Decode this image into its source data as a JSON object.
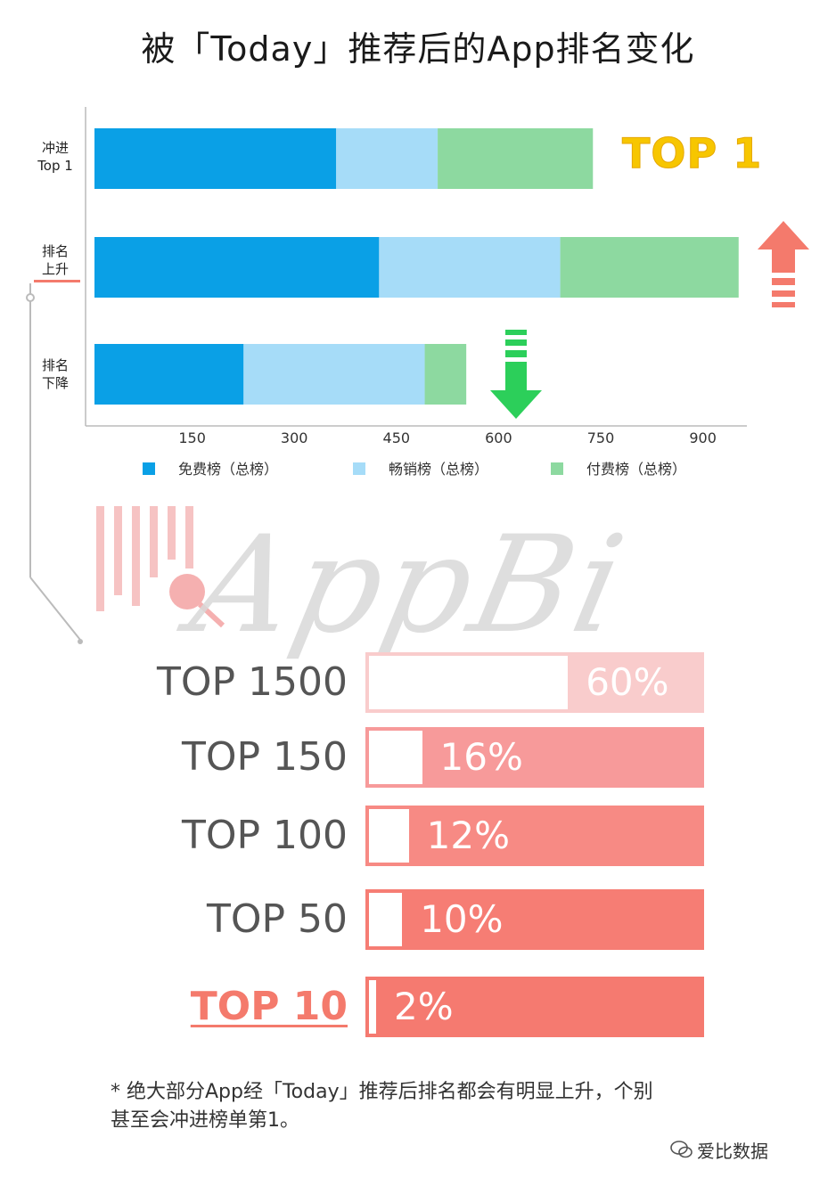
{
  "title": "被「Today」推荐后的App排名变化",
  "colors": {
    "free": "#0aa0e6",
    "grossing": "#a6dcf8",
    "paid": "#8dd9a0",
    "top1": "#f7c600",
    "up_arrow": "#f47a6c",
    "down_arrow": "#2ccf5a",
    "tier_fills": [
      "#f9cccc",
      "#f79a9a",
      "#f78a84",
      "#f67d74",
      "#f57a70"
    ]
  },
  "chart_data": [
    {
      "type": "bar",
      "orientation": "horizontal",
      "stacked": true,
      "categories": [
        [
          "冲进",
          "Top 1"
        ],
        [
          "排名",
          "上升"
        ],
        [
          "排名",
          "下降"
        ]
      ],
      "series": [
        {
          "name": "免费榜（总榜）",
          "values": [
            355,
            418,
            219
          ]
        },
        {
          "name": "畅销榜（总榜）",
          "values": [
            149,
            266,
            266
          ]
        },
        {
          "name": "付费榜（总榜）",
          "values": [
            228,
            262,
            61
          ]
        }
      ],
      "xticks": [
        "150",
        "300",
        "450",
        "600",
        "750",
        "900"
      ],
      "xlim": [
        0,
        945
      ],
      "legend": "bottom",
      "annotations": {
        "top1_badge": "TOP 1",
        "up_arrow": "up-arrow",
        "down_arrow": "down-arrow"
      }
    },
    {
      "type": "bar",
      "orientation": "horizontal",
      "categories": [
        "TOP 1500",
        "TOP 150",
        "TOP 100",
        "TOP 50",
        "TOP 10"
      ],
      "values": [
        60,
        16,
        12,
        10,
        2
      ],
      "labels": [
        "60%",
        "16%",
        "12%",
        "10%",
        "2%"
      ],
      "unit": "%"
    }
  ],
  "watermark": "AppBi",
  "footnote": {
    "line1": "* 绝大部分App经「Today」推荐后排名都会有明显上升，个别",
    "line2": "甚至会冲进榜单第1。"
  },
  "brand": "爱比数据"
}
